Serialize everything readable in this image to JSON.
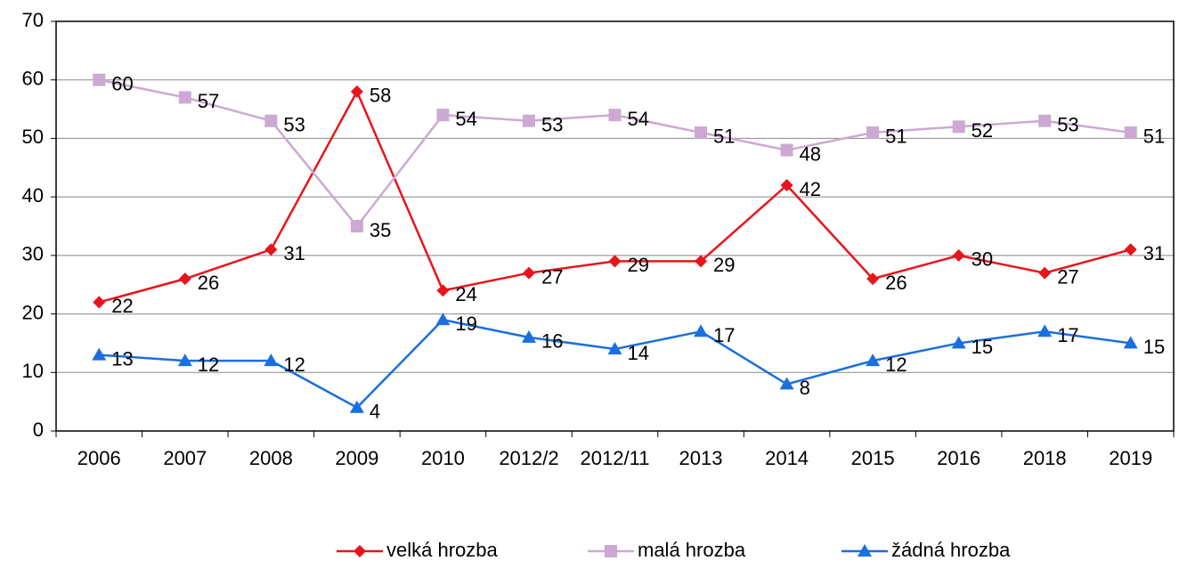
{
  "chart_data": {
    "type": "line",
    "categories": [
      "2006",
      "2007",
      "2008",
      "2009",
      "2010",
      "2012/2",
      "2012/11",
      "2013",
      "2014",
      "2015",
      "2016",
      "2018",
      "2019"
    ],
    "series": [
      {
        "name": "velká hrozba",
        "color": "#e8141b",
        "marker": "diamond",
        "values": [
          22,
          26,
          31,
          58,
          24,
          27,
          29,
          29,
          42,
          26,
          30,
          27,
          31
        ]
      },
      {
        "name": "malá hrozba",
        "color": "#cca9d3",
        "marker": "square",
        "values": [
          60,
          57,
          53,
          35,
          54,
          53,
          54,
          51,
          48,
          51,
          52,
          53,
          51
        ]
      },
      {
        "name": "žádná hrozba",
        "color": "#1a6fe0",
        "marker": "triangle",
        "values": [
          13,
          12,
          12,
          4,
          19,
          16,
          14,
          17,
          8,
          12,
          15,
          17,
          15
        ]
      }
    ],
    "ylim": [
      0,
      70
    ],
    "yticks": [
      0,
      10,
      20,
      30,
      40,
      50,
      60,
      70
    ],
    "grid": true,
    "legend": "bottom"
  }
}
